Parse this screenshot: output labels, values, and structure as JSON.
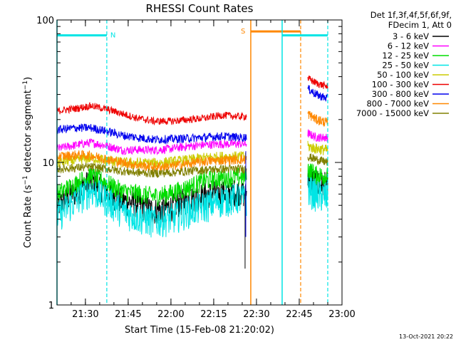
{
  "chart_data": {
    "type": "line",
    "title": "RHESSI Count Rates",
    "xlabel": "Start Time (15-Feb-08 21:20:02)",
    "ylabel": "Count Rate (s⁻¹ detector segment⁻¹)",
    "ylabel_parts": {
      "pre": "Count Rate (s",
      "sup1": "−1",
      "mid": " detector segment",
      "sup2": "−1",
      "post": ")"
    },
    "y_scale": "log",
    "ylim": [
      1,
      100
    ],
    "xlim": [
      "21:20:02",
      "23:00:00"
    ],
    "x_ticks": [
      "21:30",
      "21:45",
      "22:00",
      "22:15",
      "22:30",
      "22:45",
      "23:00"
    ],
    "y_ticks": [
      "1",
      "10",
      "100"
    ],
    "grid": false,
    "legend_position": "top-right (outside plot)",
    "legend_title": [
      "Det 1f,3f,4f,5f,6f,9f,",
      "FDecim 1, Att 0"
    ],
    "data_gaps": [
      [
        "22:26:30",
        "22:30:00"
      ],
      [
        "22:30:00",
        "22:48:00"
      ]
    ],
    "series": [
      {
        "name": "3 - 6 keV",
        "color": "#000000",
        "x": [
          "21:20",
          "21:27",
          "21:32",
          "21:38",
          "21:43",
          "21:48",
          "21:54",
          "22:00",
          "22:06",
          "22:12",
          "22:18",
          "22:24",
          "22:26",
          "22:48",
          "22:51",
          "22:55"
        ],
        "values": [
          5.0,
          6.3,
          7.5,
          6.2,
          5.4,
          5.2,
          4.6,
          4.9,
          5.6,
          6.0,
          6.2,
          6.3,
          6.0,
          8.0,
          7.2,
          7.0
        ]
      },
      {
        "name": "6 - 12 keV",
        "color": "#ff00ff",
        "x": [
          "21:20",
          "21:27",
          "21:32",
          "21:38",
          "21:43",
          "21:48",
          "21:54",
          "22:00",
          "22:06",
          "22:12",
          "22:18",
          "22:24",
          "22:26",
          "22:48",
          "22:51",
          "22:55"
        ],
        "values": [
          12.5,
          13.3,
          13.8,
          13.0,
          12.2,
          12.3,
          12.2,
          12.5,
          13.0,
          13.3,
          13.5,
          13.5,
          13.5,
          16.0,
          15.0,
          15.0
        ]
      },
      {
        "name": "12 - 25 keV",
        "color": "#00dd00",
        "x": [
          "21:20",
          "21:27",
          "21:32",
          "21:38",
          "21:43",
          "21:48",
          "21:54",
          "22:00",
          "22:06",
          "22:12",
          "22:18",
          "22:24",
          "22:26",
          "22:48",
          "22:51",
          "22:55"
        ],
        "values": [
          6.0,
          7.2,
          8.2,
          7.1,
          6.3,
          6.1,
          5.8,
          6.1,
          6.7,
          7.5,
          7.8,
          8.0,
          7.9,
          9.0,
          8.2,
          8.0
        ]
      },
      {
        "name": "25 - 50 keV",
        "color": "#00e5e5",
        "x": [
          "21:20",
          "21:27",
          "21:32",
          "21:38",
          "21:43",
          "21:48",
          "21:54",
          "22:00",
          "22:06",
          "22:12",
          "22:18",
          "22:24",
          "22:26",
          "22:48",
          "22:51",
          "22:55"
        ],
        "values": [
          4.2,
          5.5,
          6.5,
          5.4,
          4.6,
          4.2,
          3.9,
          4.1,
          4.6,
          5.0,
          5.5,
          5.7,
          5.5,
          6.5,
          6.0,
          5.8
        ]
      },
      {
        "name": "50 - 100 keV",
        "color": "#cccc00",
        "x": [
          "21:20",
          "21:27",
          "21:32",
          "21:38",
          "21:43",
          "21:48",
          "21:54",
          "22:00",
          "22:06",
          "22:12",
          "22:18",
          "22:24",
          "22:26",
          "22:48",
          "22:51",
          "22:55"
        ],
        "values": [
          10.0,
          10.4,
          10.8,
          10.3,
          10.0,
          9.9,
          9.9,
          10.1,
          10.4,
          10.8,
          11.0,
          11.0,
          11.0,
          13.0,
          12.5,
          12.2
        ]
      },
      {
        "name": "100 - 300 keV",
        "color": "#ee0000",
        "x": [
          "21:20",
          "21:27",
          "21:32",
          "21:38",
          "21:43",
          "21:48",
          "21:54",
          "22:00",
          "22:06",
          "22:12",
          "22:18",
          "22:24",
          "22:26",
          "22:48",
          "22:51",
          "22:55"
        ],
        "values": [
          23.0,
          24.0,
          25.0,
          23.5,
          22.0,
          20.5,
          19.5,
          19.5,
          20.0,
          20.5,
          21.5,
          21.0,
          21.0,
          39.0,
          36.0,
          34.0
        ]
      },
      {
        "name": "300 - 800 keV",
        "color": "#0000ee",
        "x": [
          "21:20",
          "21:27",
          "21:32",
          "21:38",
          "21:43",
          "21:48",
          "21:54",
          "22:00",
          "22:06",
          "22:12",
          "22:18",
          "22:24",
          "22:26",
          "22:48",
          "22:51",
          "22:55"
        ],
        "values": [
          17.0,
          17.5,
          17.5,
          16.5,
          15.5,
          15.0,
          14.5,
          14.6,
          14.8,
          15.0,
          15.3,
          15.0,
          15.0,
          33.0,
          30.0,
          28.0
        ]
      },
      {
        "name": "800 - 7000 keV",
        "color": "#ff8800",
        "x": [
          "21:20",
          "21:27",
          "21:32",
          "21:38",
          "21:43",
          "21:48",
          "21:54",
          "22:00",
          "22:06",
          "22:12",
          "22:18",
          "22:24",
          "22:26",
          "22:48",
          "22:51",
          "22:55"
        ],
        "values": [
          11.0,
          11.3,
          11.2,
          10.5,
          10.0,
          9.6,
          9.3,
          9.4,
          9.8,
          10.2,
          10.4,
          10.5,
          10.5,
          22.0,
          20.0,
          19.0
        ]
      },
      {
        "name": "7000 - 15000 keV",
        "color": "#808000",
        "x": [
          "21:20",
          "21:27",
          "21:32",
          "21:38",
          "21:43",
          "21:48",
          "21:54",
          "22:00",
          "22:06",
          "22:12",
          "22:18",
          "22:24",
          "22:26",
          "22:48",
          "22:51",
          "22:55"
        ],
        "values": [
          9.0,
          9.2,
          9.3,
          9.0,
          8.7,
          8.5,
          8.4,
          8.5,
          8.7,
          8.9,
          9.0,
          9.0,
          9.0,
          11.0,
          10.5,
          10.0
        ]
      }
    ],
    "markers": [
      {
        "label": "N",
        "color": "#00e5e5",
        "from": "21:20:02",
        "to": "21:37:30",
        "value": 78,
        "start_line": "solid",
        "end_line": "dashed"
      },
      {
        "label": "S",
        "color": "#ff8800",
        "from": "22:28:00",
        "to": "22:45:30",
        "value": 83,
        "start_line": "solid",
        "end_line": "dashed"
      },
      {
        "label": "",
        "color": "#00e5e5",
        "from": "22:39:00",
        "to": "22:55:00",
        "value": 78,
        "start_line": "solid",
        "end_line": "dashed"
      }
    ]
  },
  "footer": {
    "timestamp": "13-Oct-2021 20:22"
  }
}
